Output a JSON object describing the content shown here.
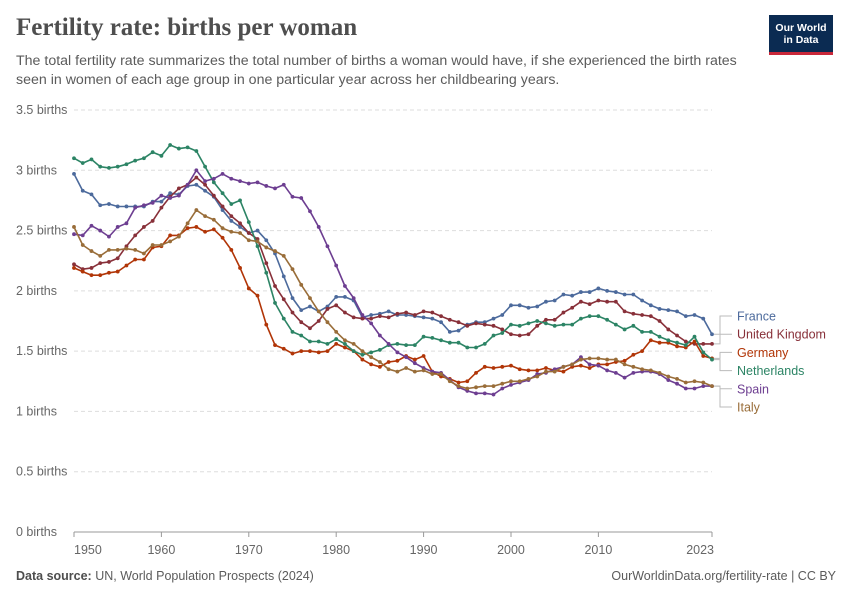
{
  "header": {
    "title": "Fertility rate: births per woman",
    "subtitle": "The total fertility rate summarizes the total number of births a woman would have, if she experienced the birth rates seen in women of each age group in one particular year across her childbearing years."
  },
  "logo": {
    "line1": "Our World",
    "line2": "in Data"
  },
  "footer": {
    "source_label": "Data source:",
    "source_text": "UN, World Population Prospects (2024)",
    "url": "OurWorldinData.org/fertility-rate | CC BY"
  },
  "chart_data": {
    "type": "line",
    "title": "Fertility rate: births per woman",
    "xlabel": "",
    "ylabel": "",
    "xlim": [
      1950,
      2023
    ],
    "ylim": [
      0,
      3.5
    ],
    "x_ticks": [
      1950,
      1960,
      1970,
      1980,
      1990,
      2000,
      2010,
      2023
    ],
    "y_ticks": [
      0,
      0.5,
      1,
      1.5,
      2,
      2.5,
      3,
      3.5
    ],
    "y_tick_labels": [
      "0 births",
      "0.5 births",
      "1 births",
      "1.5 births",
      "2 births",
      "2.5 births",
      "3 births",
      "3.5 births"
    ],
    "grid": "horizontal-dashed",
    "legend": "right-inline",
    "x": [
      1950,
      1951,
      1952,
      1953,
      1954,
      1955,
      1956,
      1957,
      1958,
      1959,
      1960,
      1961,
      1962,
      1963,
      1964,
      1965,
      1966,
      1967,
      1968,
      1969,
      1970,
      1971,
      1972,
      1973,
      1974,
      1975,
      1976,
      1977,
      1978,
      1979,
      1980,
      1981,
      1982,
      1983,
      1984,
      1985,
      1986,
      1987,
      1988,
      1989,
      1990,
      1991,
      1992,
      1993,
      1994,
      1995,
      1996,
      1997,
      1998,
      1999,
      2000,
      2001,
      2002,
      2003,
      2004,
      2005,
      2006,
      2007,
      2008,
      2009,
      2010,
      2011,
      2012,
      2013,
      2014,
      2015,
      2016,
      2017,
      2018,
      2019,
      2020,
      2021,
      2022,
      2023
    ],
    "series": [
      {
        "name": "France",
        "color": "#4c6a9c",
        "values": [
          2.97,
          2.83,
          2.8,
          2.71,
          2.72,
          2.7,
          2.7,
          2.7,
          2.7,
          2.74,
          2.74,
          2.81,
          2.8,
          2.87,
          2.88,
          2.83,
          2.78,
          2.67,
          2.58,
          2.53,
          2.48,
          2.5,
          2.42,
          2.31,
          2.12,
          1.94,
          1.84,
          1.87,
          1.83,
          1.87,
          1.95,
          1.95,
          1.92,
          1.78,
          1.8,
          1.81,
          1.83,
          1.8,
          1.8,
          1.79,
          1.78,
          1.77,
          1.74,
          1.66,
          1.67,
          1.72,
          1.74,
          1.74,
          1.77,
          1.8,
          1.88,
          1.88,
          1.86,
          1.87,
          1.91,
          1.92,
          1.97,
          1.96,
          1.99,
          1.99,
          2.02,
          2.0,
          1.99,
          1.97,
          1.97,
          1.92,
          1.88,
          1.85,
          1.84,
          1.83,
          1.79,
          1.8,
          1.77,
          1.64
        ]
      },
      {
        "name": "United Kingdom",
        "color": "#883039",
        "values": [
          2.22,
          2.18,
          2.19,
          2.23,
          2.24,
          2.27,
          2.37,
          2.46,
          2.53,
          2.58,
          2.69,
          2.78,
          2.85,
          2.88,
          2.94,
          2.88,
          2.79,
          2.7,
          2.62,
          2.56,
          2.48,
          2.43,
          2.23,
          2.04,
          1.93,
          1.82,
          1.74,
          1.69,
          1.75,
          1.85,
          1.88,
          1.82,
          1.78,
          1.77,
          1.77,
          1.79,
          1.78,
          1.81,
          1.82,
          1.8,
          1.83,
          1.82,
          1.79,
          1.76,
          1.74,
          1.71,
          1.73,
          1.72,
          1.71,
          1.68,
          1.64,
          1.63,
          1.64,
          1.71,
          1.76,
          1.76,
          1.82,
          1.86,
          1.91,
          1.89,
          1.92,
          1.91,
          1.91,
          1.83,
          1.81,
          1.8,
          1.79,
          1.75,
          1.68,
          1.63,
          1.58,
          1.56,
          1.56,
          1.56
        ]
      },
      {
        "name": "Germany",
        "color": "#b13507",
        "values": [
          2.19,
          2.16,
          2.13,
          2.13,
          2.15,
          2.16,
          2.21,
          2.26,
          2.26,
          2.36,
          2.37,
          2.46,
          2.46,
          2.52,
          2.53,
          2.49,
          2.51,
          2.44,
          2.34,
          2.19,
          2.02,
          1.96,
          1.72,
          1.55,
          1.52,
          1.48,
          1.5,
          1.5,
          1.49,
          1.5,
          1.56,
          1.53,
          1.5,
          1.43,
          1.39,
          1.37,
          1.41,
          1.42,
          1.46,
          1.43,
          1.46,
          1.33,
          1.29,
          1.27,
          1.24,
          1.25,
          1.32,
          1.37,
          1.36,
          1.37,
          1.38,
          1.35,
          1.34,
          1.34,
          1.36,
          1.34,
          1.33,
          1.37,
          1.38,
          1.36,
          1.39,
          1.39,
          1.41,
          1.42,
          1.47,
          1.5,
          1.59,
          1.57,
          1.57,
          1.54,
          1.53,
          1.58,
          1.46,
          1.44
        ]
      },
      {
        "name": "Netherlands",
        "color": "#2c8465",
        "values": [
          3.1,
          3.06,
          3.09,
          3.03,
          3.02,
          3.03,
          3.05,
          3.08,
          3.1,
          3.15,
          3.12,
          3.21,
          3.18,
          3.19,
          3.16,
          3.03,
          2.9,
          2.81,
          2.72,
          2.75,
          2.57,
          2.37,
          2.15,
          1.9,
          1.77,
          1.66,
          1.63,
          1.58,
          1.58,
          1.56,
          1.6,
          1.56,
          1.5,
          1.47,
          1.49,
          1.51,
          1.55,
          1.56,
          1.55,
          1.55,
          1.62,
          1.61,
          1.59,
          1.57,
          1.57,
          1.53,
          1.53,
          1.56,
          1.63,
          1.65,
          1.72,
          1.71,
          1.73,
          1.75,
          1.73,
          1.71,
          1.72,
          1.72,
          1.77,
          1.79,
          1.79,
          1.76,
          1.72,
          1.68,
          1.71,
          1.66,
          1.66,
          1.62,
          1.59,
          1.57,
          1.55,
          1.62,
          1.49,
          1.43
        ]
      },
      {
        "name": "Spain",
        "color": "#6d3e91",
        "values": [
          2.47,
          2.46,
          2.54,
          2.5,
          2.45,
          2.53,
          2.56,
          2.69,
          2.71,
          2.73,
          2.79,
          2.77,
          2.79,
          2.88,
          3.0,
          2.91,
          2.93,
          2.97,
          2.93,
          2.91,
          2.89,
          2.9,
          2.87,
          2.85,
          2.88,
          2.78,
          2.77,
          2.66,
          2.53,
          2.37,
          2.21,
          2.04,
          1.94,
          1.8,
          1.73,
          1.63,
          1.56,
          1.49,
          1.45,
          1.4,
          1.36,
          1.33,
          1.32,
          1.26,
          1.2,
          1.17,
          1.15,
          1.15,
          1.14,
          1.19,
          1.22,
          1.24,
          1.26,
          1.31,
          1.32,
          1.35,
          1.37,
          1.39,
          1.45,
          1.39,
          1.38,
          1.34,
          1.32,
          1.28,
          1.32,
          1.33,
          1.33,
          1.31,
          1.26,
          1.23,
          1.19,
          1.19,
          1.21,
          1.21
        ]
      },
      {
        "name": "Italy",
        "color": "#996d39",
        "values": [
          2.53,
          2.38,
          2.33,
          2.29,
          2.34,
          2.34,
          2.35,
          2.34,
          2.31,
          2.38,
          2.38,
          2.41,
          2.45,
          2.56,
          2.67,
          2.62,
          2.59,
          2.52,
          2.49,
          2.48,
          2.42,
          2.41,
          2.36,
          2.33,
          2.29,
          2.18,
          2.05,
          1.94,
          1.83,
          1.74,
          1.66,
          1.59,
          1.56,
          1.5,
          1.45,
          1.41,
          1.35,
          1.33,
          1.36,
          1.33,
          1.34,
          1.31,
          1.31,
          1.25,
          1.21,
          1.19,
          1.2,
          1.21,
          1.21,
          1.23,
          1.25,
          1.25,
          1.27,
          1.29,
          1.33,
          1.33,
          1.37,
          1.39,
          1.43,
          1.44,
          1.44,
          1.43,
          1.43,
          1.39,
          1.37,
          1.35,
          1.34,
          1.32,
          1.29,
          1.27,
          1.24,
          1.25,
          1.24,
          1.21
        ]
      }
    ]
  }
}
